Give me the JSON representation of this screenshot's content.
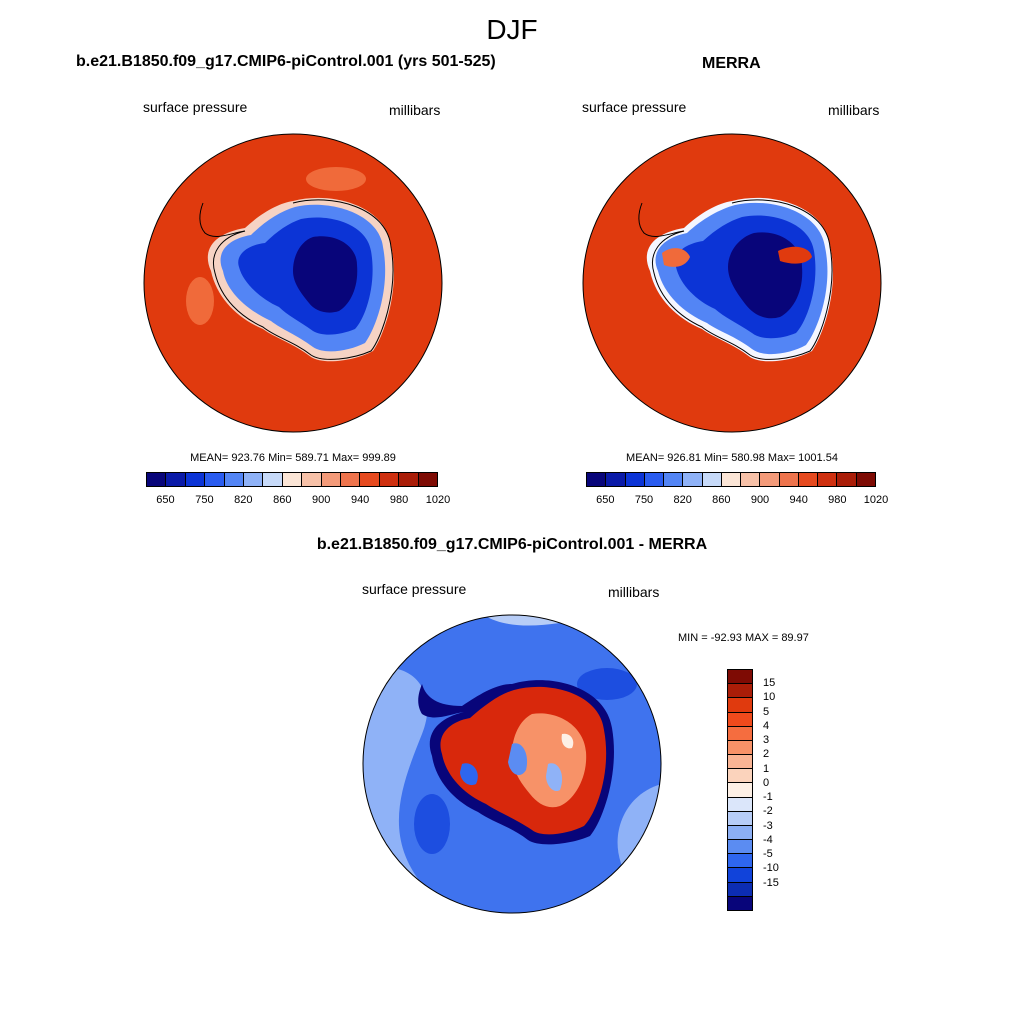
{
  "main_title": "DJF",
  "panel_left": {
    "title": "b.e21.B1850.f09_g17.CMIP6-piControl.001 (yrs 501-525)",
    "left_label": "surface pressure",
    "right_label": "millibars",
    "stats": "MEAN= 923.76  Min= 589.71  Max= 999.89"
  },
  "panel_right": {
    "title": "MERRA",
    "left_label": "surface pressure",
    "right_label": "millibars",
    "stats": "MEAN= 926.81  Min= 580.98  Max= 1001.54"
  },
  "panel_diff": {
    "title": "b.e21.B1850.f09_g17.CMIP6-piControl.001 - MERRA",
    "left_label": "surface pressure",
    "right_label": "millibars",
    "stats": "MIN = -92.93 MAX =  89.97"
  },
  "colorbar_main": {
    "tick_labels": [
      "650",
      "750",
      "820",
      "860",
      "900",
      "940",
      "980",
      "1020"
    ],
    "colors": [
      "#08057a",
      "#0a1aa8",
      "#0c34d6",
      "#2a5cf0",
      "#5385f5",
      "#8fb2f7",
      "#c7daf9",
      "#fbe5d6",
      "#f7c1a8",
      "#f39a79",
      "#ee744d",
      "#e64a1f",
      "#cf3010",
      "#aa1d08",
      "#7e0b04"
    ]
  },
  "colorbar_diff": {
    "tick_labels": [
      "15",
      "10",
      "5",
      "4",
      "3",
      "2",
      "1",
      "0",
      "-1",
      "-2",
      "-3",
      "-4",
      "-5",
      "-10",
      "-15"
    ],
    "colors": [
      "#7e0b04",
      "#aa1d08",
      "#e03a0e",
      "#f04a1c",
      "#f56d3f",
      "#f79268",
      "#f9b494",
      "#fbd3bc",
      "#fdf0e6",
      "#dbe6fa",
      "#b7cdf7",
      "#8caff4",
      "#5b8cf2",
      "#2e66ef",
      "#1143da",
      "#0c2db3",
      "#08057a"
    ]
  },
  "map_colors": {
    "ocean_warm": "#e03a0e",
    "ocean_warm_light": "#f06a3a",
    "ice_deep": "#08057a",
    "ice_mid": "#0c34d6",
    "ice_light": "#5385f5",
    "ice_edge": "#f4f6ff",
    "diff_ocean": "#3f73ee",
    "diff_ocean_light": "#8fb2f7",
    "diff_ocean_dark": "#1d4ee0",
    "diff_land_red": "#d8280c",
    "diff_land_dark": "#08057a"
  }
}
